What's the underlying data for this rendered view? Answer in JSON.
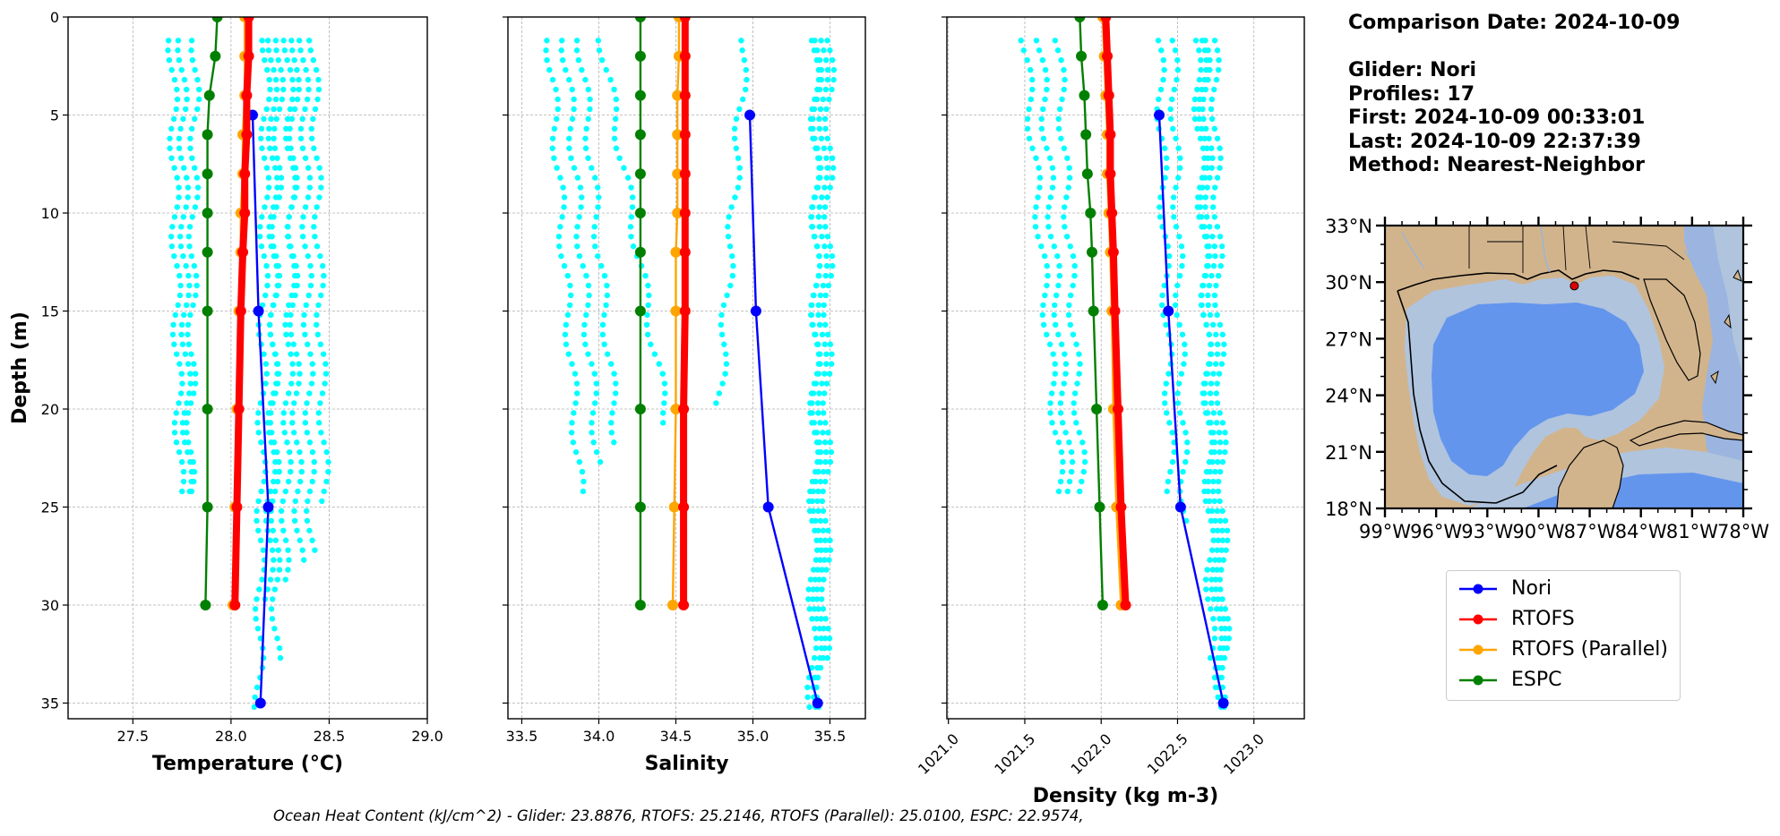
{
  "info": {
    "comparison_date": "Comparison Date: 2024-10-09",
    "glider": "Glider: Nori",
    "profiles": "Profiles: 17",
    "first": "First: 2024-10-09 00:33:01",
    "last": "Last: 2024-10-09 22:37:39",
    "method": "Method: Nearest-Neighbor"
  },
  "footer": "Ocean Heat Content (kJ/cm^2) - Glider: 23.8876,  RTOFS: 25.2146,  RTOFS (Parallel): 25.0100,  ESPC: 22.9574,",
  "colors": {
    "Nori": "#0000ff",
    "RTOFS": "#ff0000",
    "RTOFS (Parallel)": "#ffa500",
    "ESPC": "#008000",
    "glider_profiles": "#00ffff",
    "land": "#d2b48c",
    "ocean_deep": "#6495ed",
    "ocean_shallow": "#b0c4de",
    "ocean_mid": "#9bb5e0"
  },
  "chart_data": [
    {
      "type": "line",
      "xlabel": "Temperature (°C)",
      "ylabel": "Depth (m)",
      "xlim": [
        27.17,
        29.0
      ],
      "ylim": [
        35.8,
        0
      ],
      "xticks": [
        "27.5",
        "28.0",
        "28.5",
        "29.0"
      ],
      "xtick_values": [
        27.5,
        28.0,
        28.5,
        29.0
      ],
      "yticks": [
        "0",
        "5",
        "10",
        "15",
        "20",
        "25",
        "30",
        "35"
      ],
      "ytick_values": [
        0,
        5,
        10,
        15,
        20,
        25,
        30,
        35
      ],
      "grid": true,
      "profile_cloud": {
        "name": "glider profiles",
        "depth_max": 35.5,
        "columns": [
          [
            27.7,
            27.74,
            24.5
          ],
          [
            27.75,
            27.78,
            24.5
          ],
          [
            27.82,
            27.79,
            24.5
          ],
          [
            28.18,
            28.14,
            35.5
          ],
          [
            28.25,
            28.19,
            30
          ],
          [
            28.33,
            28.27,
            29
          ],
          [
            28.42,
            28.48,
            25
          ],
          [
            28.37,
            28.41,
            27.5
          ],
          [
            28.29,
            28.35,
            28
          ],
          [
            28.21,
            28.23,
            33
          ]
        ]
      },
      "series": [
        {
          "name": "Nori",
          "depth": [
            5,
            15,
            25,
            35
          ],
          "values": [
            28.11,
            28.14,
            28.19,
            28.15
          ]
        },
        {
          "name": "RTOFS",
          "depth": [
            0,
            2,
            4,
            6,
            8,
            10,
            12,
            15,
            20,
            25,
            30
          ],
          "values": [
            28.09,
            28.09,
            28.08,
            28.08,
            28.07,
            28.07,
            28.06,
            28.05,
            28.04,
            28.03,
            28.02
          ]
        },
        {
          "name": "RTOFS (Parallel)",
          "depth": [
            0,
            2,
            4,
            6,
            8,
            10,
            12,
            15,
            20,
            25,
            30
          ],
          "values": [
            28.07,
            28.07,
            28.07,
            28.06,
            28.06,
            28.05,
            28.05,
            28.04,
            28.03,
            28.02,
            28.01
          ]
        },
        {
          "name": "ESPC",
          "depth": [
            0,
            2,
            4,
            6,
            8,
            10,
            12,
            15,
            20,
            25,
            30
          ],
          "values": [
            27.93,
            27.92,
            27.89,
            27.88,
            27.88,
            27.88,
            27.88,
            27.88,
            27.88,
            27.88,
            27.87
          ]
        }
      ]
    },
    {
      "type": "line",
      "xlabel": "Salinity",
      "ylabel": "",
      "xlim": [
        33.41,
        35.73
      ],
      "ylim": [
        35.8,
        0
      ],
      "xticks": [
        "33.5",
        "34.0",
        "34.5",
        "35.0",
        "35.5"
      ],
      "xtick_values": [
        33.5,
        34.0,
        34.5,
        35.0,
        35.5
      ],
      "grid": true,
      "profile_cloud": {
        "name": "glider profiles",
        "depth_max": 35.5,
        "columns": [
          [
            33.68,
            33.88,
            24.5
          ],
          [
            33.78,
            34.0,
            23
          ],
          [
            33.88,
            34.12,
            22
          ],
          [
            34.02,
            34.45,
            21
          ],
          [
            34.95,
            34.78,
            20
          ],
          [
            35.4,
            35.42,
            35.5
          ],
          [
            35.46,
            35.44,
            35.5
          ],
          [
            35.42,
            35.38,
            35.5
          ],
          [
            35.5,
            35.47,
            33
          ]
        ]
      },
      "series": [
        {
          "name": "Nori",
          "depth": [
            5,
            15,
            25,
            35
          ],
          "values": [
            34.98,
            35.02,
            35.1,
            35.42
          ]
        },
        {
          "name": "RTOFS",
          "depth": [
            0,
            2,
            4,
            6,
            8,
            10,
            12,
            15,
            20,
            25,
            30
          ],
          "values": [
            34.56,
            34.56,
            34.56,
            34.56,
            34.56,
            34.56,
            34.56,
            34.56,
            34.55,
            34.55,
            34.55
          ]
        },
        {
          "name": "RTOFS (Parallel)",
          "depth": [
            0,
            2,
            4,
            6,
            8,
            10,
            12,
            15,
            20,
            25,
            30
          ],
          "values": [
            34.52,
            34.52,
            34.51,
            34.51,
            34.51,
            34.51,
            34.5,
            34.5,
            34.5,
            34.49,
            34.48
          ]
        },
        {
          "name": "ESPC",
          "depth": [
            0,
            2,
            4,
            6,
            8,
            10,
            12,
            15,
            20,
            25,
            30
          ],
          "values": [
            34.27,
            34.27,
            34.27,
            34.27,
            34.27,
            34.27,
            34.27,
            34.27,
            34.27,
            34.27,
            34.27
          ]
        }
      ]
    },
    {
      "type": "line",
      "xlabel": "Density (kg m-3)",
      "ylabel": "",
      "xlim": [
        1020.99,
        1023.33
      ],
      "ylim": [
        35.8,
        0
      ],
      "xticks": [
        "1021.0",
        "1021.5",
        "1022.0",
        "1022.5",
        "1023.0"
      ],
      "xtick_values": [
        1021.0,
        1021.5,
        1022.0,
        1022.5,
        1023.0
      ],
      "grid": true,
      "profile_cloud": {
        "name": "glider profiles",
        "depth_max": 35.5,
        "columns": [
          [
            1021.5,
            1021.74,
            24.5
          ],
          [
            1021.6,
            1021.8,
            24.5
          ],
          [
            1021.72,
            1021.88,
            24.5
          ],
          [
            1022.38,
            1022.46,
            24.5
          ],
          [
            1022.47,
            1022.55,
            26
          ],
          [
            1022.62,
            1022.78,
            35.5
          ],
          [
            1022.68,
            1022.8,
            35.5
          ],
          [
            1022.74,
            1022.82,
            35
          ],
          [
            1022.66,
            1022.72,
            33
          ]
        ]
      },
      "series": [
        {
          "name": "Nori",
          "depth": [
            5,
            15,
            25,
            35
          ],
          "values": [
            1022.38,
            1022.44,
            1022.52,
            1022.8
          ]
        },
        {
          "name": "RTOFS",
          "depth": [
            0,
            2,
            4,
            6,
            8,
            10,
            12,
            15,
            20,
            25,
            30
          ],
          "values": [
            1022.03,
            1022.04,
            1022.05,
            1022.06,
            1022.06,
            1022.07,
            1022.08,
            1022.09,
            1022.11,
            1022.13,
            1022.16
          ]
        },
        {
          "name": "RTOFS (Parallel)",
          "depth": [
            0,
            2,
            4,
            6,
            8,
            10,
            12,
            15,
            20,
            25,
            30
          ],
          "values": [
            1022.01,
            1022.02,
            1022.03,
            1022.04,
            1022.04,
            1022.05,
            1022.06,
            1022.07,
            1022.08,
            1022.1,
            1022.13
          ]
        },
        {
          "name": "ESPC",
          "depth": [
            0,
            2,
            4,
            6,
            8,
            10,
            12,
            15,
            20,
            25,
            30
          ],
          "values": [
            1021.86,
            1021.87,
            1021.89,
            1021.9,
            1021.91,
            1021.93,
            1021.94,
            1021.95,
            1021.97,
            1021.99,
            1022.01
          ]
        }
      ]
    }
  ],
  "map": {
    "lat_labels": [
      "33°N",
      "30°N",
      "27°N",
      "24°N",
      "21°N",
      "18°N"
    ],
    "lon_labels": [
      "99°W",
      "96°W",
      "93°W",
      "90°W",
      "87°W",
      "84°W",
      "81°W",
      "78°W"
    ],
    "glider_location": {
      "lon": -87.9,
      "lat": 29.8
    }
  },
  "legend": [
    "Nori",
    "RTOFS",
    "RTOFS (Parallel)",
    "ESPC"
  ]
}
